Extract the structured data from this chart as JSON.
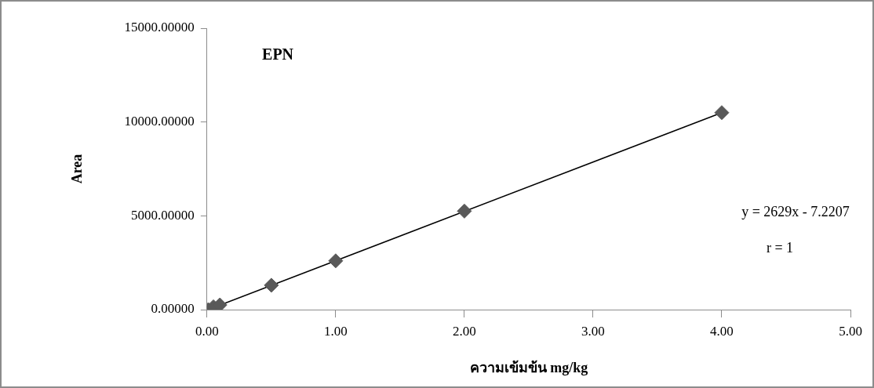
{
  "chart_data": {
    "type": "scatter",
    "title": "EPN",
    "xlabel": "ความเข้มข้น mg/kg",
    "ylabel": "Area",
    "series": [
      {
        "color": "#595959",
        "marker": "diamond",
        "x": [
          0.01,
          0.05,
          0.1,
          0.5,
          1,
          2,
          4
        ],
        "values": [
          0,
          150,
          250,
          1300,
          2600,
          5250,
          10500
        ]
      },
      {
        "type": "line",
        "color": "#000000",
        "marker": "none",
        "line_style": "solid",
        "x": [
          0.01,
          4
        ],
        "values": [
          0,
          10500
        ]
      }
    ],
    "xlim": [
      0,
      5
    ],
    "xticks": [
      {
        "value": 0,
        "label": "0.00"
      },
      {
        "value": 1,
        "label": "1.00"
      },
      {
        "value": 2,
        "label": "2.00"
      },
      {
        "value": 3,
        "label": "3.00"
      },
      {
        "value": 4,
        "label": "4.00"
      },
      {
        "value": 5,
        "label": "5.00"
      }
    ],
    "ylim": [
      0,
      15000
    ],
    "yticks": [
      {
        "value": 0,
        "label": "0.00000"
      },
      {
        "value": 5000,
        "label": "5000.00000"
      },
      {
        "value": 10000,
        "label": "10000.00000"
      },
      {
        "value": 15000,
        "label": "15000.00000"
      }
    ],
    "annotations": [
      "y = 2629x - 7.2207",
      "r = 1"
    ],
    "grid": false,
    "legend": false
  }
}
